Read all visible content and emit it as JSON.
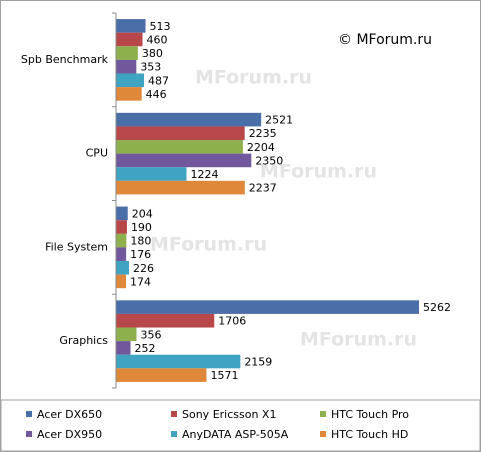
{
  "chart_data": {
    "type": "bar",
    "orientation": "horizontal",
    "copyright": "© MForum.ru",
    "watermark": "MForum.ru",
    "categories": [
      "Spb Benchmark",
      "CPU",
      "File System",
      "Graphics"
    ],
    "series": [
      {
        "name": "Acer DX650",
        "color": "#4a6fa8",
        "values": [
          513,
          2521,
          204,
          5262
        ]
      },
      {
        "name": "Sony Ericsson X1",
        "color": "#b8474a",
        "values": [
          460,
          2235,
          190,
          1706
        ]
      },
      {
        "name": "HTC Touch Pro",
        "color": "#8daf4c",
        "values": [
          380,
          2204,
          180,
          356
        ]
      },
      {
        "name": "Acer DX950",
        "color": "#71579b",
        "values": [
          353,
          2350,
          176,
          252
        ]
      },
      {
        "name": "AnyDATA ASP-505A",
        "color": "#3fa3c2",
        "values": [
          487,
          1224,
          226,
          2159
        ]
      },
      {
        "name": "HTC Touch HD",
        "color": "#e0883a",
        "values": [
          446,
          2237,
          174,
          1571
        ]
      }
    ]
  }
}
